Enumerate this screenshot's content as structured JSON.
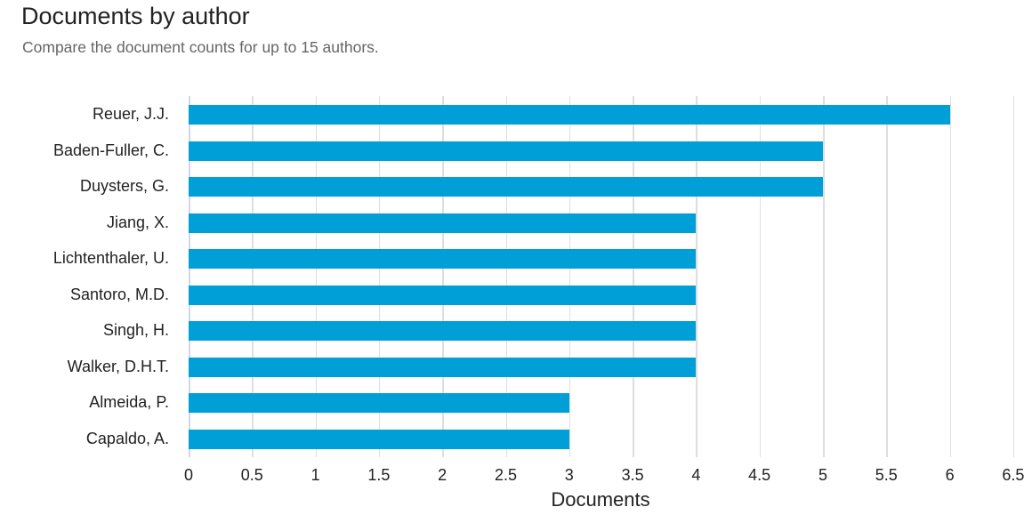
{
  "header": {
    "title": "Documents by author",
    "subtitle": "Compare the document counts for up to 15 authors."
  },
  "colors": {
    "bar": "#009fd8",
    "grid": "#dedede",
    "text": "#222222",
    "subtitle": "#666666"
  },
  "chart_data": {
    "type": "bar",
    "orientation": "horizontal",
    "title": "Documents by author",
    "subtitle": "Compare the document counts for up to 15 authors.",
    "categories": [
      "Reuer, J.J.",
      "Baden-Fuller, C.",
      "Duysters, G.",
      "Jiang, X.",
      "Lichtenthaler, U.",
      "Santoro, M.D.",
      "Singh, H.",
      "Walker, D.H.T.",
      "Almeida, P.",
      "Capaldo, A."
    ],
    "values": [
      6,
      5,
      5,
      4,
      4,
      4,
      4,
      4,
      3,
      3
    ],
    "xlabel": "Documents",
    "ylabel": "",
    "xlim": [
      0,
      6.5
    ],
    "xticks": [
      "0",
      "0.5",
      "1",
      "1.5",
      "2",
      "2.5",
      "3",
      "3.5",
      "4",
      "4.5",
      "5",
      "5.5",
      "6",
      "6.5"
    ],
    "grid": true,
    "legend": null
  }
}
